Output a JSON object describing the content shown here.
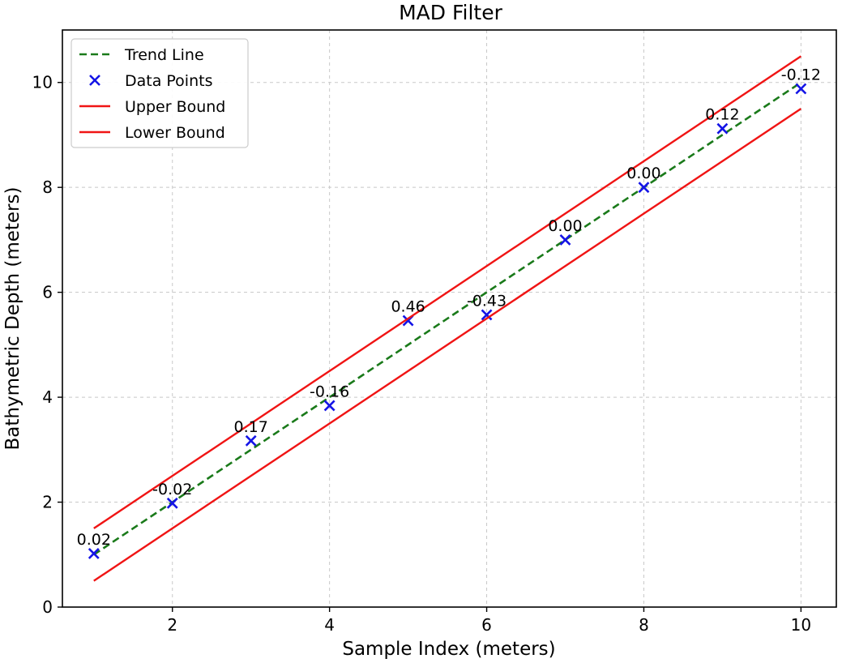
{
  "chart_data": {
    "type": "line",
    "title": "MAD Filter",
    "xlabel": "Sample Index (meters)",
    "ylabel": "Bathymetric Depth (meters)",
    "xlim": [
      0.6,
      10.45
    ],
    "ylim": [
      0,
      11
    ],
    "xticks": [
      2,
      4,
      6,
      8,
      10
    ],
    "yticks": [
      0,
      2,
      4,
      6,
      8,
      10
    ],
    "grid": true,
    "legend_position": "top-left",
    "x": [
      1,
      2,
      3,
      4,
      5,
      6,
      7,
      8,
      9,
      10
    ],
    "series": [
      {
        "name": "Trend Line",
        "kind": "line",
        "style": "dashed",
        "color": "#1a7a1a",
        "values": [
          1,
          2,
          3,
          4,
          5,
          6,
          7,
          8,
          9,
          10
        ]
      },
      {
        "name": "Data Points",
        "kind": "scatter",
        "marker": "x",
        "color": "#1414e6",
        "values": [
          1.02,
          1.98,
          3.17,
          3.84,
          5.46,
          5.57,
          7.0,
          8.0,
          9.12,
          9.88
        ],
        "labels": [
          "0.02",
          "-0.02",
          "0.17",
          "-0.16",
          "0.46",
          "-0.43",
          "0.00",
          "0.00",
          "0.12",
          "-0.12"
        ]
      },
      {
        "name": "Upper Bound",
        "kind": "line",
        "style": "solid",
        "color": "#f01414",
        "values": [
          1.5,
          2.5,
          3.5,
          4.5,
          5.5,
          6.5,
          7.5,
          8.5,
          9.5,
          10.5
        ]
      },
      {
        "name": "Lower Bound",
        "kind": "line",
        "style": "solid",
        "color": "#f01414",
        "values": [
          0.5,
          1.5,
          2.5,
          3.5,
          4.5,
          5.5,
          6.5,
          7.5,
          8.5,
          9.5
        ]
      }
    ]
  }
}
